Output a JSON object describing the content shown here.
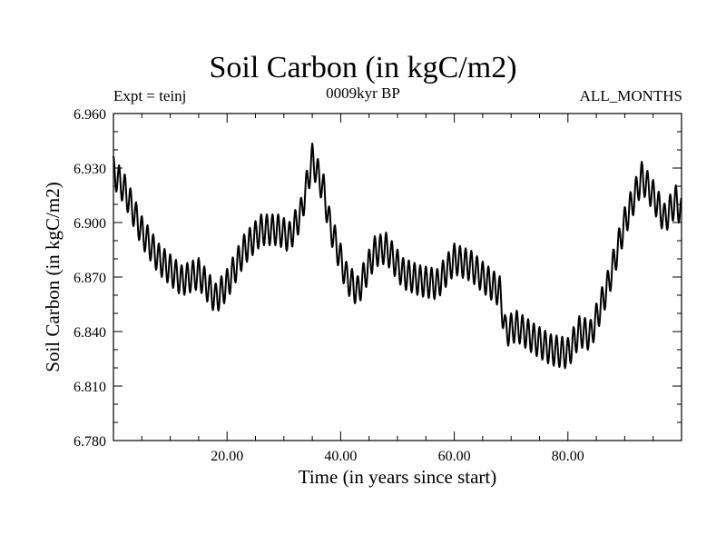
{
  "chart_data": {
    "type": "line",
    "title": "Soil Carbon (in kgC/m2)",
    "subtitle_left": "Expt = teinj",
    "subtitle_center": "0009kyr BP",
    "subtitle_right": "ALL_MONTHS",
    "xlabel": "Time (in years since start)",
    "ylabel": "Soil Carbon (in kgC/m2)",
    "xlim": [
      0,
      100
    ],
    "ylim": [
      6.78,
      6.96
    ],
    "x_ticks": [
      "20.00",
      "40.00",
      "60.00",
      "80.00"
    ],
    "x_tick_values": [
      20,
      40,
      60,
      80
    ],
    "y_ticks": [
      "6.780",
      "6.810",
      "6.840",
      "6.870",
      "6.900",
      "6.930",
      "6.960"
    ],
    "y_tick_values": [
      6.78,
      6.81,
      6.84,
      6.87,
      6.9,
      6.93,
      6.96
    ],
    "grid": false,
    "series": [
      {
        "name": "Soil Carbon",
        "seasonal_amplitude": 0.0085,
        "annual_mean_x": [
          0,
          2,
          5,
          8,
          12,
          15,
          18,
          20,
          23,
          26,
          29,
          31,
          33,
          35,
          37,
          38,
          41,
          43,
          46,
          48,
          51,
          54,
          57,
          60,
          63,
          65,
          68,
          69,
          71,
          74,
          77,
          80,
          82,
          84,
          87,
          90,
          93,
          95,
          97,
          99,
          100
        ],
        "annual_mean_y": [
          6.928,
          6.918,
          6.895,
          6.88,
          6.868,
          6.872,
          6.858,
          6.866,
          6.885,
          6.896,
          6.896,
          6.892,
          6.905,
          6.935,
          6.918,
          6.9,
          6.87,
          6.862,
          6.884,
          6.886,
          6.872,
          6.868,
          6.866,
          6.88,
          6.876,
          6.87,
          6.862,
          6.84,
          6.843,
          6.836,
          6.83,
          6.828,
          6.84,
          6.838,
          6.865,
          6.9,
          6.925,
          6.915,
          6.902,
          6.912,
          6.905
        ]
      }
    ]
  }
}
